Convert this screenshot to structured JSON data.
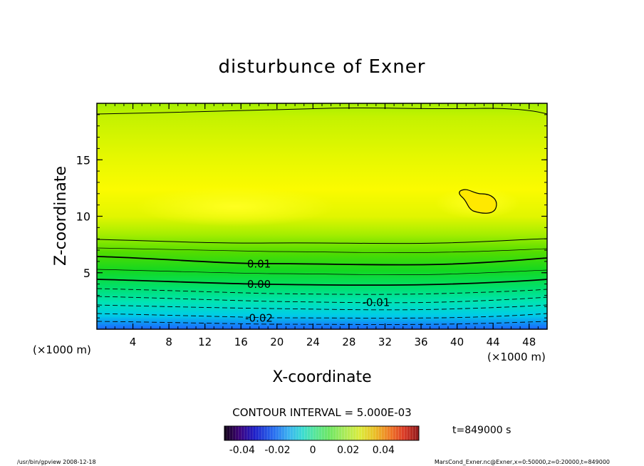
{
  "chart_data": {
    "type": "heatmap",
    "title": "disturbunce of Exner",
    "xlabel": "X-coordinate",
    "ylabel": "Z-coordinate",
    "x_unit": "(×1000 m)",
    "z_unit": "(×1000 m)",
    "xlim": [
      0,
      50
    ],
    "ylim": [
      0,
      20
    ],
    "x_ticks": [
      "4",
      "8",
      "12",
      "16",
      "20",
      "24",
      "28",
      "32",
      "36",
      "40",
      "44",
      "48"
    ],
    "y_ticks": [
      "5",
      "10",
      "15"
    ],
    "contour_labels": [
      {
        "text": "0.01",
        "x": 18,
        "z": 5.7
      },
      {
        "text": "0.00",
        "x": 18,
        "z": 3.9
      },
      {
        "text": "-0.01",
        "x": 31,
        "z": 2.3
      },
      {
        "text": "-0.02",
        "x": 18,
        "z": 0.9
      }
    ],
    "contour_interval_text": "CONTOUR INTERVAL = 5.000E-03",
    "time_text": "t=849000 s",
    "colorbar": {
      "min": -0.05,
      "max": 0.06,
      "tick_labels": [
        "-0.04",
        "-0.02",
        "0",
        "0.02",
        "0.04"
      ],
      "tick_values": [
        -0.04,
        -0.02,
        0,
        0.02,
        0.04
      ]
    },
    "footer_left": "/usr/bin/gpview  2008-12-18",
    "footer_right": "MarsCond_Exner.nc@Exner,x=0:50000,z=0:20000,t=849000"
  }
}
